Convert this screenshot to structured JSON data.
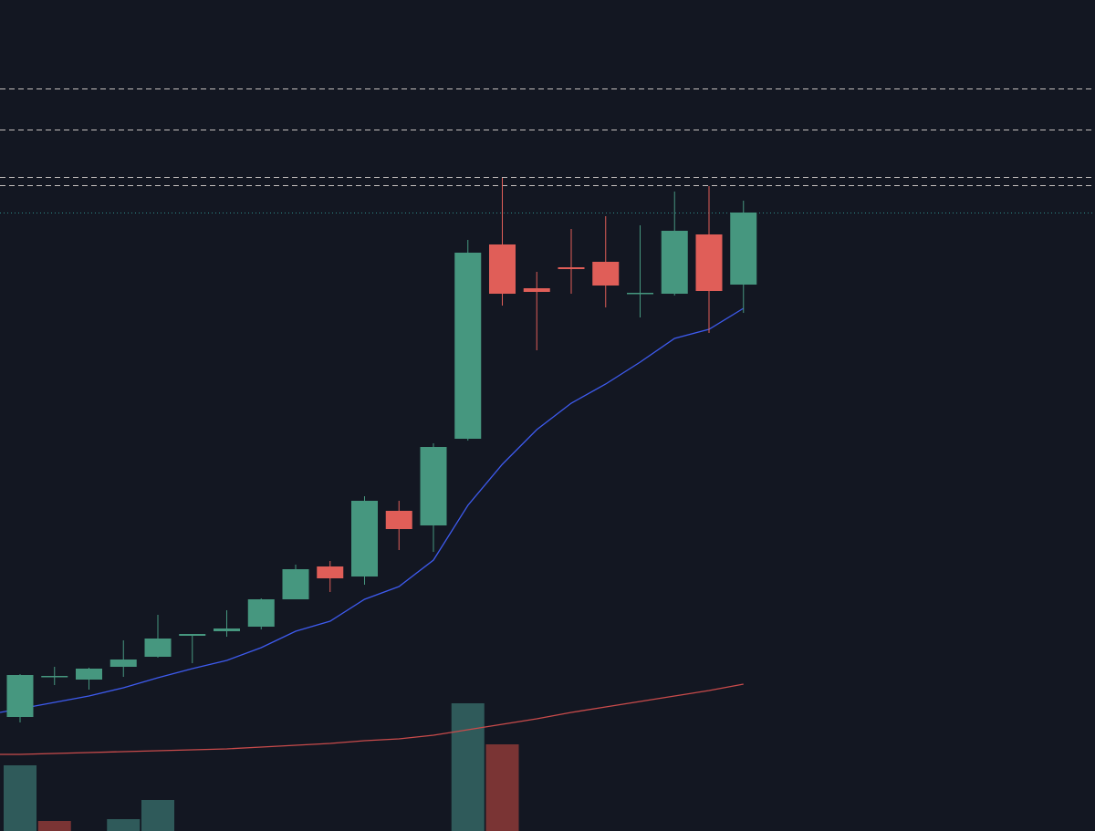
{
  "colors": {
    "background": "#131722",
    "up": "#46977F",
    "down": "#E05E58",
    "volume_up": "#2F5A5A",
    "volume_down": "#7A3434",
    "ma_fast": "#3E5BEF",
    "ma_slow": "#C94B4B",
    "level_line": "#D9D3CF",
    "last_price_line": "#2D8C8C"
  },
  "chart_data": {
    "type": "candlestick",
    "title": "",
    "xlabel": "",
    "ylabel": "",
    "ylim": [
      0,
      911
    ],
    "grid": false,
    "legend": "none",
    "candles": [
      {
        "open": 125,
        "close": 171,
        "high": 172,
        "low": 119
      },
      {
        "open": 170,
        "close": 170,
        "high": 180,
        "low": 160
      },
      {
        "open": 166,
        "close": 178,
        "high": 179,
        "low": 155
      },
      {
        "open": 180,
        "close": 188,
        "high": 209,
        "low": 169
      },
      {
        "open": 191,
        "close": 211,
        "high": 237,
        "low": 190
      },
      {
        "open": 214,
        "close": 216,
        "high": 216,
        "low": 184
      },
      {
        "open": 219,
        "close": 222,
        "high": 242,
        "low": 213
      },
      {
        "open": 224,
        "close": 254,
        "high": 255,
        "low": 221
      },
      {
        "open": 254,
        "close": 287,
        "high": 292,
        "low": 254
      },
      {
        "open": 290,
        "close": 277,
        "high": 296,
        "low": 262
      },
      {
        "open": 279,
        "close": 362,
        "high": 367,
        "low": 270
      },
      {
        "open": 351,
        "close": 331,
        "high": 362,
        "low": 308
      },
      {
        "open": 335,
        "close": 421,
        "high": 425,
        "low": 306
      },
      {
        "open": 430,
        "close": 634,
        "high": 648,
        "low": 428
      },
      {
        "open": 643,
        "close": 589,
        "high": 716,
        "low": 576
      },
      {
        "open": 595,
        "close": 591,
        "high": 613,
        "low": 527
      },
      {
        "open": 618,
        "close": 616,
        "high": 660,
        "low": 589
      },
      {
        "open": 624,
        "close": 598,
        "high": 674,
        "low": 574
      },
      {
        "open": 590,
        "close": 590,
        "high": 664,
        "low": 563
      },
      {
        "open": 589,
        "close": 658,
        "high": 701,
        "low": 587
      },
      {
        "open": 654,
        "close": 592,
        "high": 707,
        "low": 546
      },
      {
        "open": 599,
        "close": 678,
        "high": 691,
        "low": 568
      }
    ],
    "volume": [
      {
        "value": 72,
        "direction": "up"
      },
      {
        "value": 11,
        "direction": "down"
      },
      {
        "value": 0,
        "direction": "up"
      },
      {
        "value": 13,
        "direction": "up"
      },
      {
        "value": 34,
        "direction": "up"
      },
      {
        "value": 0,
        "direction": "up"
      },
      {
        "value": 0,
        "direction": "up"
      },
      {
        "value": 0,
        "direction": "up"
      },
      {
        "value": 0,
        "direction": "up"
      },
      {
        "value": 0,
        "direction": "down"
      },
      {
        "value": 0,
        "direction": "up"
      },
      {
        "value": 0,
        "direction": "down"
      },
      {
        "value": 0,
        "direction": "up"
      },
      {
        "value": 140,
        "direction": "up"
      },
      {
        "value": 95,
        "direction": "down"
      },
      {
        "value": 0,
        "direction": "down"
      },
      {
        "value": 0,
        "direction": "down"
      },
      {
        "value": 0,
        "direction": "down"
      },
      {
        "value": 0,
        "direction": "up"
      },
      {
        "value": 0,
        "direction": "up"
      },
      {
        "value": 0,
        "direction": "down"
      },
      {
        "value": 0,
        "direction": "up"
      }
    ],
    "ma_fast": [
      134,
      141,
      148,
      157,
      168,
      178,
      187,
      201,
      219,
      230,
      254,
      268,
      297,
      357,
      402,
      440,
      469,
      490,
      514,
      540,
      550,
      573
    ],
    "ma_slow": [
      84,
      85,
      86,
      87,
      88,
      89,
      90,
      92,
      94,
      96,
      99,
      101,
      105,
      111,
      117,
      123,
      130,
      136,
      142,
      148,
      154,
      161
    ],
    "levels": [
      814,
      769,
      717,
      708
    ],
    "last_price": 678
  }
}
